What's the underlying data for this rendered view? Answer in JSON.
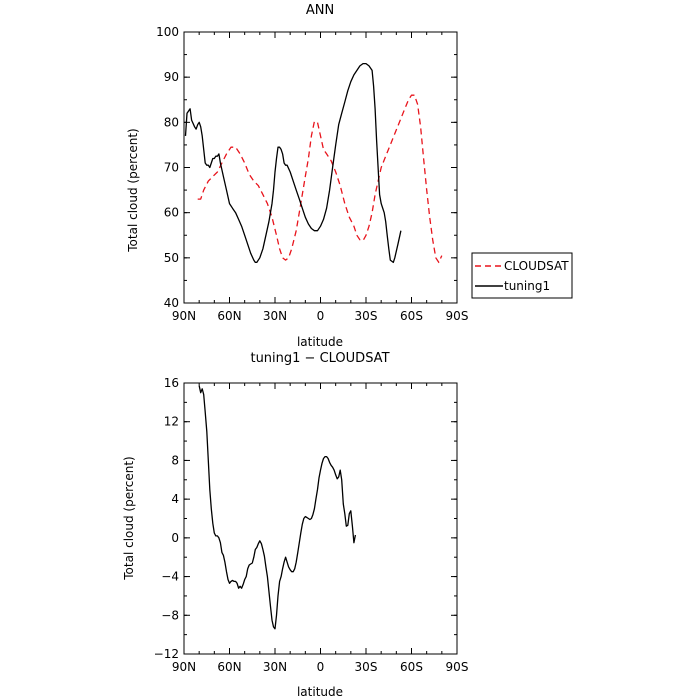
{
  "chart_data": [
    {
      "type": "line",
      "title": "ANN",
      "xlabel": "latitude",
      "ylabel": "Total cloud (percent)",
      "xlim": [
        90,
        -90
      ],
      "ylim": [
        40,
        100
      ],
      "x_ticks": [
        90,
        60,
        30,
        0,
        -30,
        -60,
        -90
      ],
      "x_tick_labels": [
        "90N",
        "60N",
        "30N",
        "0",
        "30S",
        "60S",
        "90S"
      ],
      "y_ticks": [
        40,
        50,
        60,
        70,
        80,
        90,
        100
      ],
      "y_tick_labels": [
        "40",
        "50",
        "60",
        "70",
        "80",
        "90",
        "100"
      ],
      "legend": {
        "placement": "right",
        "entries": [
          {
            "name": "CLOUDSAT",
            "color": "#e8141c",
            "dash": "dashed"
          },
          {
            "name": "tuning1",
            "color": "#000000",
            "dash": "solid"
          }
        ]
      },
      "series": [
        {
          "name": "CLOUDSAT",
          "color": "#e8141c",
          "dash": "dashed",
          "points": [
            [
              81,
              63
            ],
            [
              79,
              63
            ],
            [
              77,
              65
            ],
            [
              74,
              67
            ],
            [
              71,
              68
            ],
            [
              68,
              69
            ],
            [
              65,
              71
            ],
            [
              62,
              73
            ],
            [
              59,
              74.5
            ],
            [
              56,
              74.5
            ],
            [
              53,
              73
            ],
            [
              50,
              71
            ],
            [
              47,
              68.5
            ],
            [
              44,
              67
            ],
            [
              41,
              66
            ],
            [
              38,
              64
            ],
            [
              35,
              62
            ],
            [
              32,
              59
            ],
            [
              29,
              55
            ],
            [
              27,
              52
            ],
            [
              25,
              50
            ],
            [
              23,
              49.5
            ],
            [
              21,
              50
            ],
            [
              19,
              52
            ],
            [
              16,
              56
            ],
            [
              13,
              62
            ],
            [
              10,
              68
            ],
            [
              8,
              72
            ],
            [
              6,
              77
            ],
            [
              4,
              80.2
            ],
            [
              2,
              80
            ],
            [
              0,
              77
            ],
            [
              -2,
              74
            ],
            [
              -4,
              73
            ],
            [
              -7,
              71.5
            ],
            [
              -10,
              69
            ],
            [
              -13,
              66
            ],
            [
              -16,
              62
            ],
            [
              -19,
              59
            ],
            [
              -22,
              57
            ],
            [
              -24,
              55
            ],
            [
              -26,
              54
            ],
            [
              -28,
              53.8
            ],
            [
              -30,
              55
            ],
            [
              -32,
              57
            ],
            [
              -34,
              60
            ],
            [
              -36,
              64
            ],
            [
              -38,
              67
            ],
            [
              -40,
              70
            ],
            [
              -43,
              72.5
            ],
            [
              -46,
              75
            ],
            [
              -49,
              77.5
            ],
            [
              -52,
              80
            ],
            [
              -55,
              82.5
            ],
            [
              -58,
              85
            ],
            [
              -60,
              86
            ],
            [
              -62,
              86
            ],
            [
              -64,
              84
            ],
            [
              -66,
              79
            ],
            [
              -68,
              72
            ],
            [
              -70,
              65
            ],
            [
              -72,
              59
            ],
            [
              -74,
              54
            ],
            [
              -76,
              50
            ],
            [
              -78,
              49
            ],
            [
              -80,
              50.5
            ]
          ]
        },
        {
          "name": "tuning1",
          "color": "#000000",
          "dash": "solid",
          "points": [
            [
              89,
              77
            ],
            [
              88,
              82
            ],
            [
              87,
              82.5
            ],
            [
              86,
              83
            ],
            [
              85,
              80.5
            ],
            [
              83,
              79
            ],
            [
              82,
              78.5
            ],
            [
              81,
              79.5
            ],
            [
              80,
              80
            ],
            [
              79,
              79
            ],
            [
              78,
              77
            ],
            [
              77,
              74
            ],
            [
              76,
              71
            ],
            [
              75,
              70.5
            ],
            [
              74,
              70.5
            ],
            [
              73,
              70
            ],
            [
              72,
              71
            ],
            [
              71,
              72
            ],
            [
              70,
              72
            ],
            [
              69,
              72.5
            ],
            [
              68,
              72.5
            ],
            [
              67,
              73
            ],
            [
              66,
              71
            ],
            [
              64,
              68
            ],
            [
              62,
              65
            ],
            [
              60,
              62
            ],
            [
              58,
              61
            ],
            [
              56,
              60
            ],
            [
              54,
              58.5
            ],
            [
              52,
              57
            ],
            [
              50,
              55
            ],
            [
              48,
              53
            ],
            [
              46,
              51
            ],
            [
              44,
              49.5
            ],
            [
              43,
              49
            ],
            [
              42,
              49
            ],
            [
              40,
              50
            ],
            [
              38,
              52
            ],
            [
              36,
              55
            ],
            [
              34,
              58
            ],
            [
              32,
              62
            ],
            [
              31,
              65
            ],
            [
              30,
              69
            ],
            [
              29,
              72
            ],
            [
              28,
              74.5
            ],
            [
              27,
              74.5
            ],
            [
              26,
              74
            ],
            [
              25,
              73
            ],
            [
              24,
              71
            ],
            [
              23,
              70.5
            ],
            [
              22,
              70.5
            ],
            [
              20,
              69
            ],
            [
              18,
              67
            ],
            [
              16,
              65
            ],
            [
              14,
              63
            ],
            [
              12,
              61
            ],
            [
              10,
              59
            ],
            [
              8,
              57.5
            ],
            [
              6,
              56.5
            ],
            [
              4,
              56
            ],
            [
              2,
              56
            ],
            [
              0,
              57
            ],
            [
              -2,
              58.5
            ],
            [
              -4,
              61
            ],
            [
              -6,
              65
            ],
            [
              -8,
              70
            ],
            [
              -10,
              75
            ],
            [
              -12,
              79.5
            ],
            [
              -14,
              82
            ],
            [
              -16,
              84.5
            ],
            [
              -18,
              87
            ],
            [
              -20,
              89
            ],
            [
              -22,
              90.5
            ],
            [
              -24,
              91.5
            ],
            [
              -26,
              92.5
            ],
            [
              -28,
              93
            ],
            [
              -30,
              93
            ],
            [
              -32,
              92.5
            ],
            [
              -34,
              91.5
            ],
            [
              -35,
              88
            ],
            [
              -36,
              83
            ],
            [
              -37,
              76
            ],
            [
              -38,
              70
            ],
            [
              -39,
              64
            ],
            [
              -40,
              62
            ],
            [
              -42,
              60
            ],
            [
              -43,
              58
            ],
            [
              -44,
              55
            ],
            [
              -45,
              52
            ],
            [
              -46,
              49.5
            ],
            [
              -48,
              49
            ],
            [
              -49,
              50
            ],
            [
              -51,
              53
            ],
            [
              -53,
              56
            ]
          ]
        }
      ]
    },
    {
      "type": "line",
      "title": "tuning1 − CLOUDSAT",
      "xlabel": "latitude",
      "ylabel": "Total cloud (percent)",
      "xlim": [
        90,
        -90
      ],
      "ylim": [
        -12,
        16
      ],
      "x_ticks": [
        90,
        60,
        30,
        0,
        -30,
        -60,
        -90
      ],
      "x_tick_labels": [
        "90N",
        "60N",
        "30N",
        "0",
        "30S",
        "60S",
        "90S"
      ],
      "y_ticks": [
        -12,
        -8,
        -4,
        0,
        4,
        8,
        12,
        16
      ],
      "y_tick_labels": [
        "−12",
        "−8",
        "−4",
        "0",
        "4",
        "8",
        "12",
        "16"
      ],
      "series": [
        {
          "name": "tuning1 - CLOUDSAT",
          "color": "#000000",
          "dash": "solid",
          "points": [
            [
              80,
              15.7
            ],
            [
              79,
              15
            ],
            [
              78,
              15.4
            ],
            [
              77,
              14.8
            ],
            [
              76,
              13
            ],
            [
              75,
              11
            ],
            [
              74,
              8
            ],
            [
              73,
              5
            ],
            [
              72,
              3
            ],
            [
              71,
              1.5
            ],
            [
              70,
              0.5
            ],
            [
              69,
              0.2
            ],
            [
              68,
              0.2
            ],
            [
              67,
              0
            ],
            [
              66,
              -0.5
            ],
            [
              65,
              -1.5
            ],
            [
              64,
              -1.8
            ],
            [
              63,
              -2.5
            ],
            [
              62,
              -3.5
            ],
            [
              61,
              -4.3
            ],
            [
              60,
              -4.7
            ],
            [
              59,
              -4.5
            ],
            [
              58,
              -4.4
            ],
            [
              57,
              -4.5
            ],
            [
              56,
              -4.5
            ],
            [
              55,
              -4.7
            ],
            [
              54,
              -5.2
            ],
            [
              53,
              -5
            ],
            [
              52,
              -5.2
            ],
            [
              51,
              -4.8
            ],
            [
              50,
              -4.3
            ],
            [
              49,
              -4
            ],
            [
              48,
              -3.2
            ],
            [
              47,
              -2.8
            ],
            [
              46,
              -2.7
            ],
            [
              45,
              -2.6
            ],
            [
              44,
              -2
            ],
            [
              43,
              -1.2
            ],
            [
              42,
              -1
            ],
            [
              41,
              -0.6
            ],
            [
              40,
              -0.3
            ],
            [
              39,
              -0.6
            ],
            [
              38,
              -1.2
            ],
            [
              37,
              -1.9
            ],
            [
              36,
              -3
            ],
            [
              35,
              -4
            ],
            [
              34,
              -5.5
            ],
            [
              33,
              -7
            ],
            [
              32,
              -8.5
            ],
            [
              31,
              -9.2
            ],
            [
              30,
              -9.4
            ],
            [
              29,
              -8
            ],
            [
              28,
              -6
            ],
            [
              27,
              -4.5
            ],
            [
              26,
              -4
            ],
            [
              25,
              -3.2
            ],
            [
              24,
              -2.5
            ],
            [
              23,
              -2
            ],
            [
              22,
              -2.5
            ],
            [
              21,
              -3
            ],
            [
              20,
              -3.3
            ],
            [
              19,
              -3.5
            ],
            [
              18,
              -3.5
            ],
            [
              17,
              -3.2
            ],
            [
              16,
              -2.5
            ],
            [
              15,
              -1.5
            ],
            [
              14,
              -0.5
            ],
            [
              13,
              0.5
            ],
            [
              12,
              1.4
            ],
            [
              11,
              2
            ],
            [
              10,
              2.2
            ],
            [
              9,
              2.1
            ],
            [
              8,
              2
            ],
            [
              7,
              1.9
            ],
            [
              6,
              2
            ],
            [
              5,
              2.4
            ],
            [
              4,
              3
            ],
            [
              3,
              4
            ],
            [
              2,
              5
            ],
            [
              1,
              6.2
            ],
            [
              0,
              7
            ],
            [
              -1,
              7.7
            ],
            [
              -2,
              8.2
            ],
            [
              -3,
              8.4
            ],
            [
              -4,
              8.4
            ],
            [
              -5,
              8.2
            ],
            [
              -6,
              7.8
            ],
            [
              -7,
              7.5
            ],
            [
              -8,
              7.3
            ],
            [
              -9,
              7
            ],
            [
              -10,
              6.5
            ],
            [
              -11,
              6.1
            ],
            [
              -12,
              6.3
            ],
            [
              -13,
              7
            ],
            [
              -14,
              6
            ],
            [
              -15,
              3.5
            ],
            [
              -16,
              2.5
            ],
            [
              -17,
              1.2
            ],
            [
              -18,
              1.3
            ],
            [
              -19,
              2.5
            ],
            [
              -20,
              2.8
            ],
            [
              -21,
              1.2
            ],
            [
              -22,
              -0.5
            ],
            [
              -23,
              0.3
            ]
          ]
        }
      ]
    }
  ]
}
